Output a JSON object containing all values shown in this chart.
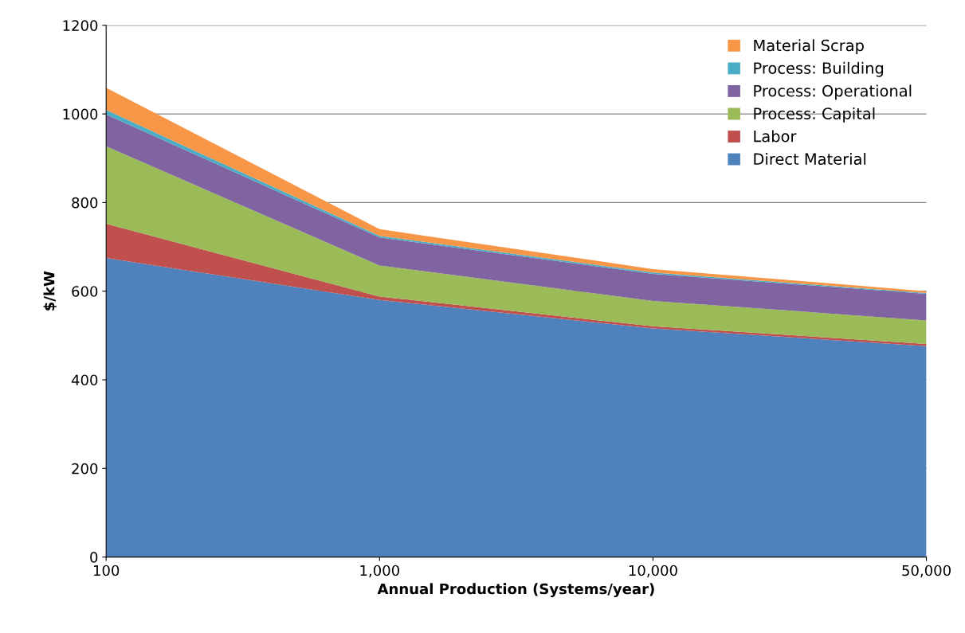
{
  "chart_data": {
    "type": "area",
    "stacked": true,
    "xlabel": "Annual Production (Systems/year)",
    "ylabel": "$/kW",
    "categories": [
      "100",
      "1,000",
      "10,000",
      "50,000"
    ],
    "series": [
      {
        "name": "Direct Material",
        "color": "#4f81bd",
        "values": [
          675,
          580,
          516,
          476
        ]
      },
      {
        "name": "Labor",
        "color": "#c0504d",
        "values": [
          77,
          8,
          5,
          5
        ]
      },
      {
        "name": "Process: Capital",
        "color": "#9bbb59",
        "values": [
          175,
          70,
          57,
          53
        ]
      },
      {
        "name": "Process: Operational",
        "color": "#8064a2",
        "values": [
          72,
          63,
          61,
          60
        ]
      },
      {
        "name": "Process: Building",
        "color": "#4bacc6",
        "values": [
          10,
          4,
          3,
          2
        ]
      },
      {
        "name": "Material Scrap",
        "color": "#f79646",
        "values": [
          50,
          15,
          8,
          4
        ]
      }
    ],
    "ylim": [
      0,
      1200
    ],
    "yticks": [
      0,
      200,
      400,
      600,
      800,
      1000,
      1200
    ],
    "grid": "y",
    "legend": "top right"
  }
}
